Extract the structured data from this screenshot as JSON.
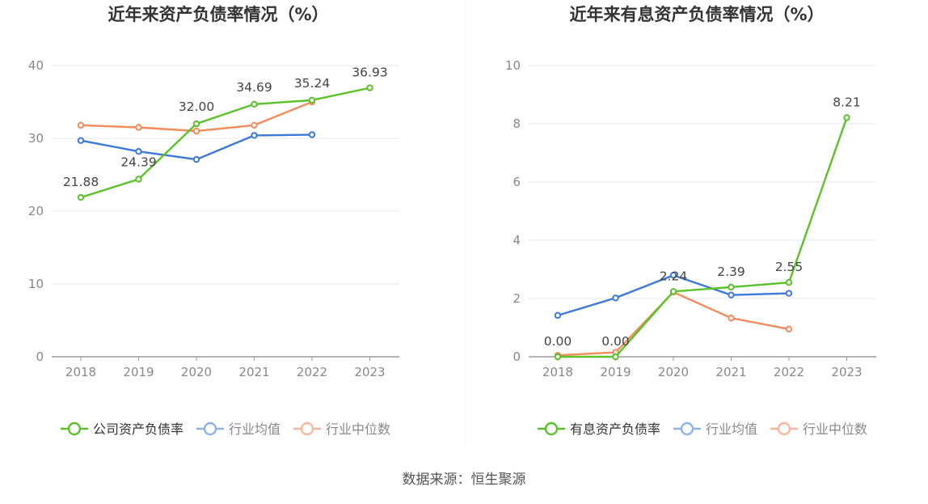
{
  "source_text": "数据来源：恒生聚源",
  "colors": {
    "company": "#5ac229",
    "industry_avg": "#3d78dc",
    "industry_median": "#f38b5c",
    "legend_avg": "#8fb2ef",
    "legend_median": "#f8b79c",
    "grid": "#e6e9f2",
    "axis": "#9a9a9a",
    "tick": "#888888",
    "title": "#333333",
    "label": "#444444"
  },
  "chart_data": [
    {
      "type": "line",
      "title": "近年来资产负债率情况（%）",
      "categories": [
        "2018",
        "2019",
        "2020",
        "2021",
        "2022",
        "2023"
      ],
      "y_ticks": [
        "0",
        "10",
        "20",
        "30",
        "40"
      ],
      "ylim": [
        0,
        40
      ],
      "grid": true,
      "legend_placement": "bottom",
      "series": [
        {
          "name": "公司资产负债率",
          "color_key": "company",
          "values": [
            21.88,
            24.39,
            32.0,
            34.69,
            35.24,
            36.93
          ],
          "labels": [
            "21.88",
            "24.39",
            "32.00",
            "34.69",
            "35.24",
            "36.93"
          ]
        },
        {
          "name": "行业均值",
          "color_key": "industry_avg",
          "values": [
            29.7,
            28.2,
            27.1,
            30.4,
            30.5,
            null
          ]
        },
        {
          "name": "行业中位数",
          "color_key": "industry_median",
          "values": [
            31.8,
            31.5,
            31.0,
            31.8,
            35.0,
            null
          ]
        }
      ]
    },
    {
      "type": "line",
      "title": "近年来有息资产负债率情况（%）",
      "categories": [
        "2018",
        "2019",
        "2020",
        "2021",
        "2022",
        "2023"
      ],
      "y_ticks": [
        "0",
        "2",
        "4",
        "6",
        "8",
        "10"
      ],
      "ylim": [
        0,
        10
      ],
      "grid": true,
      "legend_placement": "bottom",
      "series": [
        {
          "name": "有息资产负债率",
          "color_key": "company",
          "values": [
            0.0,
            0.0,
            2.24,
            2.39,
            2.55,
            8.21
          ],
          "labels": [
            "0.00",
            "0.00",
            "2.24",
            "2.39",
            "2.55",
            "8.21"
          ]
        },
        {
          "name": "行业均值",
          "color_key": "industry_avg",
          "values": [
            1.42,
            2.02,
            2.8,
            2.12,
            2.18,
            null
          ]
        },
        {
          "name": "行业中位数",
          "color_key": "industry_median",
          "values": [
            0.05,
            0.15,
            2.22,
            1.33,
            0.95,
            null
          ]
        }
      ]
    }
  ]
}
